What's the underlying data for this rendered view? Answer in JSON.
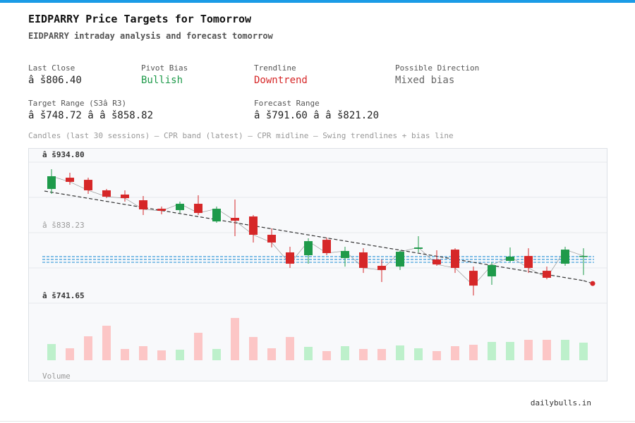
{
  "header": {
    "title": "EIDPARRY Price Targets for Tomorrow",
    "subtitle": "EIDPARRY intraday analysis and forecast tomorrow"
  },
  "stats": [
    {
      "label": "Last Close",
      "value": "â š806.40",
      "color": "#222222"
    },
    {
      "label": "Pivot Bias",
      "value": "Bullish",
      "color": "#1e9a4a"
    },
    {
      "label": "Trendline",
      "value": "Downtrend",
      "color": "#d62728"
    },
    {
      "label": "Possible Direction",
      "value": "Mixed bias",
      "color": "#666666"
    },
    {
      "label": "Target Range (S3â  R3)",
      "value": "â š748.72 â    â š858.82",
      "color": "#222222"
    },
    {
      "label": "Forecast Range",
      "value": "â š791.60 â    â š821.20",
      "color": "#222222"
    }
  ],
  "footer": "dailybulls.in",
  "chart_data": {
    "type": "candlestick",
    "caption": "Candles (last 30 sessions) – CPR band (latest) – CPR midline – Swing trendlines + bias line",
    "open": [
      898.1,
      913.5,
      910.6,
      896.2,
      890.4,
      882.6,
      871.0,
      869.1,
      877.8,
      853.6,
      858.5,
      860.4,
      835.3,
      811.2,
      807.3,
      828.5,
      803.4,
      811.2,
      792.8,
      791.8,
      816.0,
      801.5,
      815.0,
      786.0,
      778.3,
      799.6,
      806.3,
      786.0,
      795.7,
      805.4
    ],
    "high": [
      925.1,
      920.3,
      913.5,
      898.1,
      896.2,
      888.4,
      873.9,
      880.7,
      889.4,
      873.9,
      883.6,
      862.4,
      844.0,
      818.9,
      830.5,
      831.4,
      818.9,
      816.9,
      801.5,
      814.1,
      833.4,
      814.1,
      816.9,
      791.8,
      797.6,
      817.9,
      816.9,
      791.8,
      818.9,
      816.9
    ],
    "low": [
      891.3,
      903.9,
      891.3,
      885.5,
      880.7,
      862.4,
      863.3,
      865.2,
      862.4,
      851.7,
      833.4,
      824.7,
      817.9,
      789.9,
      795.7,
      807.3,
      791.8,
      783.1,
      770.6,
      787.0,
      811.2,
      792.8,
      783.1,
      752.2,
      766.7,
      797.6,
      783.1,
      774.4,
      792.8,
      780.2
    ],
    "close": [
      915.5,
      907.8,
      896.2,
      887.5,
      885.5,
      870.1,
      868.2,
      877.8,
      865.2,
      871.0,
      854.6,
      835.3,
      824.7,
      795.7,
      826.6,
      810.2,
      813.1,
      789.9,
      787.0,
      812.1,
      817.9,
      794.7,
      789.9,
      765.7,
      793.8,
      805.4,
      789.9,
      776.4,
      815.0,
      806.4
    ],
    "volume": [
      23,
      17,
      34,
      49,
      16,
      20,
      14,
      15,
      39,
      16,
      60,
      33,
      17,
      33,
      19,
      13,
      20,
      16,
      16,
      21,
      17,
      13,
      20,
      22,
      26,
      26,
      29,
      29,
      29,
      25
    ],
    "volume_label": "Volume",
    "up_color": "#1e9a4a",
    "down_color": "#d62728",
    "volume_up_color": "#bdf0cb",
    "volume_down_color": "#fcc6c6",
    "ylim": [
      741.65,
      934.8
    ],
    "yticks": [
      {
        "value": 934.8,
        "label": "â š934.80"
      },
      {
        "value": 838.23,
        "label": "â š838.23"
      },
      {
        "value": 741.65,
        "label": "â š741.65"
      }
    ],
    "grid": true,
    "cpr": {
      "tc": 805.4,
      "pivot": 801.5,
      "bc": 797.6,
      "color": "#3a9bd9"
    },
    "trendline": {
      "x": [
        0,
        29
      ],
      "y": [
        893.3,
        772.5
      ],
      "color": "#333333"
    },
    "bias_point": {
      "x": 29.5,
      "y": 768.6,
      "color": "#d62728"
    }
  }
}
